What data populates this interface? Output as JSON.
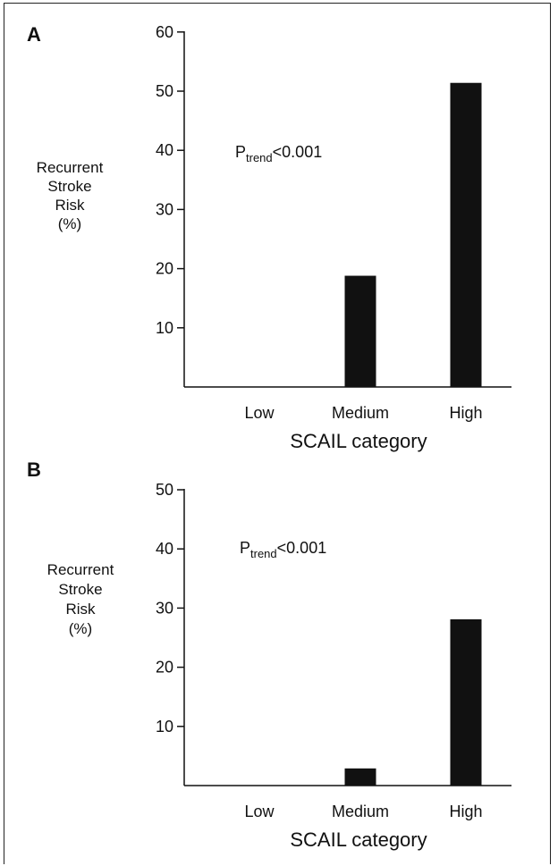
{
  "chart_data": [
    {
      "type": "bar",
      "panel": "A",
      "categories": [
        "Low",
        "Medium",
        "High"
      ],
      "values": [
        0,
        18.8,
        51.4
      ],
      "xlabel": "SCAIL category",
      "ylabel": [
        "Recurrent",
        "Stroke",
        "Risk",
        "(%)"
      ],
      "yticks": [
        10,
        20,
        30,
        40,
        50,
        60
      ],
      "ylim": [
        0,
        60
      ],
      "annotation": {
        "main": "P",
        "sub": "trend",
        "rest": "<0.001"
      },
      "bar_color": "#111111",
      "grid": false,
      "legend": "none"
    },
    {
      "type": "bar",
      "panel": "B",
      "categories": [
        "Low",
        "Medium",
        "High"
      ],
      "values": [
        0,
        2.9,
        28.1
      ],
      "xlabel": "SCAIL category",
      "ylabel": [
        "Recurrent",
        "Stroke",
        "Risk",
        "(%)"
      ],
      "yticks": [
        10,
        20,
        30,
        40,
        50
      ],
      "ylim": [
        0,
        50
      ],
      "annotation": {
        "main": "P",
        "sub": "trend",
        "rest": "<0.001"
      },
      "bar_color": "#111111",
      "grid": false,
      "legend": "none"
    }
  ]
}
